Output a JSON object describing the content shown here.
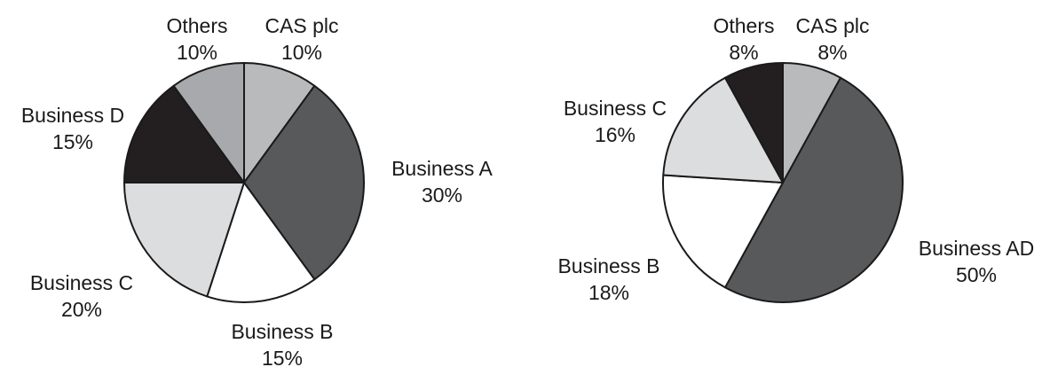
{
  "chart_data": [
    {
      "type": "pie",
      "slices": [
        {
          "label": "CAS plc",
          "value": 10,
          "pct": "10%",
          "color": "#b9babc"
        },
        {
          "label": "Business A",
          "value": 30,
          "pct": "30%",
          "color": "#58595b"
        },
        {
          "label": "Business B",
          "value": 15,
          "pct": "15%",
          "color": "#ffffff"
        },
        {
          "label": "Business C",
          "value": 20,
          "pct": "20%",
          "color": "#dcdddf"
        },
        {
          "label": "Business D",
          "value": 15,
          "pct": "15%",
          "color": "#231f20"
        },
        {
          "label": "Others",
          "value": 10,
          "pct": "10%",
          "color": "#a7a9ac"
        }
      ]
    },
    {
      "type": "pie",
      "slices": [
        {
          "label": "CAS plc",
          "value": 8,
          "pct": "8%",
          "color": "#b9babc"
        },
        {
          "label": "Business AD",
          "value": 50,
          "pct": "50%",
          "color": "#58595b"
        },
        {
          "label": "Business B",
          "value": 18,
          "pct": "18%",
          "color": "#ffffff"
        },
        {
          "label": "Business C",
          "value": 16,
          "pct": "16%",
          "color": "#dcdddf"
        },
        {
          "label": "Others",
          "value": 8,
          "pct": "8%",
          "color": "#231f20"
        }
      ]
    }
  ]
}
